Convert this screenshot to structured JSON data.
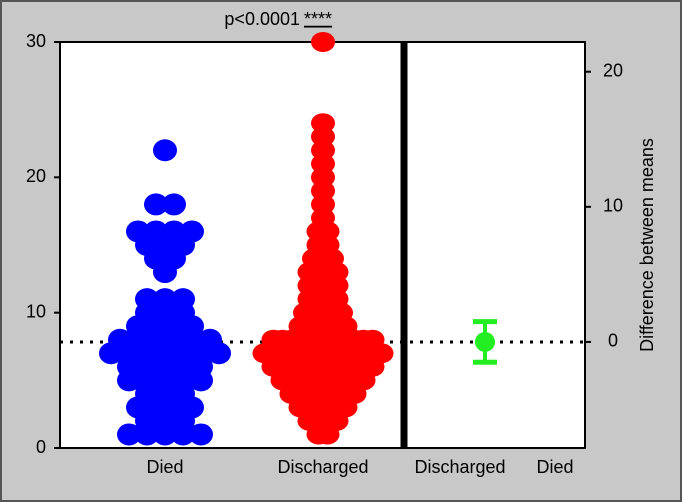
{
  "chart_data": {
    "type": "estimation",
    "annotation": "p<0.0001",
    "significance": "****",
    "ylim": [
      0,
      30
    ],
    "yticks": [
      0,
      10,
      20,
      30
    ],
    "y2lim": [
      -7.85,
      22.2
    ],
    "y2ticks": [
      0,
      10,
      20
    ],
    "y2label": "Difference between means",
    "groups": [
      {
        "name": "Died",
        "color": "#0000ff",
        "values": [
          22,
          18,
          18,
          16,
          16,
          16,
          16,
          15,
          15,
          15,
          14,
          14,
          13,
          11,
          11,
          11,
          10,
          10,
          10,
          9,
          9,
          9,
          9,
          8,
          8,
          8,
          8,
          8,
          8,
          7,
          7,
          7,
          7,
          7,
          7,
          7,
          6,
          6,
          6,
          6,
          6,
          5,
          5,
          5,
          5,
          5,
          4,
          4,
          4,
          3,
          3,
          3,
          3,
          2,
          2,
          2,
          1,
          1,
          1,
          1,
          1
        ]
      },
      {
        "name": "Discharged",
        "color": "#ff0000",
        "values": [
          30,
          24,
          23,
          22,
          21,
          20,
          19,
          18,
          17,
          16,
          16,
          15,
          15,
          14,
          14,
          14,
          13,
          13,
          13,
          13,
          12,
          12,
          12,
          12,
          11,
          11,
          11,
          11,
          10,
          10,
          10,
          10,
          10,
          9,
          9,
          9,
          9,
          9,
          9,
          8,
          8,
          8,
          8,
          8,
          8,
          8,
          8,
          8,
          8,
          8,
          8,
          7,
          7,
          7,
          7,
          7,
          7,
          7,
          7,
          7,
          7,
          7,
          7,
          7,
          7,
          6,
          6,
          6,
          6,
          6,
          6,
          6,
          6,
          6,
          6,
          6,
          6,
          5,
          5,
          5,
          5,
          5,
          5,
          5,
          5,
          5,
          5,
          4,
          4,
          4,
          4,
          4,
          4,
          4,
          4,
          3,
          3,
          3,
          3,
          3,
          3,
          2,
          2,
          2,
          2,
          1,
          1
        ]
      }
    ],
    "difference": {
      "categories": [
        "Discharged",
        "Died"
      ],
      "value": 0,
      "ci": [
        -1.5,
        1.5
      ],
      "color": "#22ee22"
    },
    "reference_line": 0
  }
}
